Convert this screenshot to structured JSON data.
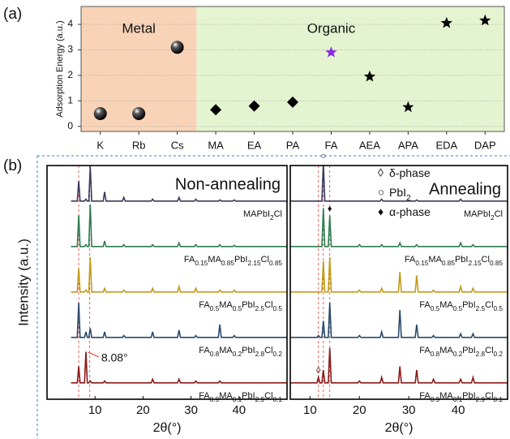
{
  "panel_labels": [
    "(a)",
    "(b)"
  ],
  "chart_data": [
    {
      "type": "scatter",
      "ylabel": "Adsorption Energy (a.u.)",
      "categories": [
        "K",
        "Rb",
        "Cs",
        "MA",
        "EA",
        "PA",
        "FA",
        "AEA",
        "APA",
        "EDA",
        "DAP"
      ],
      "values": [
        0.5,
        0.5,
        3.1,
        0.65,
        0.8,
        0.95,
        2.9,
        1.95,
        0.75,
        4.05,
        4.15
      ],
      "markers": [
        "sphere",
        "sphere",
        "sphere",
        "diamond",
        "diamond",
        "diamond",
        "star",
        "star",
        "star",
        "star",
        "star"
      ],
      "colors": [
        "#000000",
        "#000000",
        "#000000",
        "#000000",
        "#000000",
        "#000000",
        "#8a2be2",
        "#000000",
        "#000000",
        "#000000",
        "#000000"
      ],
      "ylim": [
        -0.2,
        4.7
      ],
      "yticks": [
        0,
        1,
        2,
        3,
        4
      ],
      "grid": true,
      "regions": [
        {
          "label": "Metal",
          "from": 0,
          "to": 2,
          "color": "#f9d3b7"
        },
        {
          "label": "Organic",
          "from": 3,
          "to": 10,
          "color": "#e5f4d0"
        }
      ]
    },
    {
      "type": "line",
      "title": "Non-annealing",
      "xlabel": "2θ(°)",
      "ylabel": "Intensity (a.u.)",
      "x": [
        5,
        6.3,
        6.6,
        6.9,
        7.8,
        8.1,
        8.4,
        8.7,
        9.0,
        9.3,
        11.7,
        12.0,
        12.3,
        15.7,
        16.0,
        16.3,
        21.7,
        22.0,
        22.3,
        27.2,
        27.5,
        27.8,
        30.7,
        31.0,
        31.3,
        35.7,
        36.0,
        36.3,
        38.7,
        39.0,
        39.3,
        50
      ],
      "xlim": [
        0,
        50
      ],
      "xticks": [
        10,
        20,
        30,
        40
      ],
      "ref_lines": [
        6.6,
        8.9
      ],
      "series": [
        {
          "name": "MAPbI2Cl",
          "color": "#3c3a5a",
          "values": [
            0.05,
            0.05,
            0.6,
            0.05,
            0.05,
            0.1,
            0.05,
            0.05,
            1.0,
            0.05,
            0.05,
            0.3,
            0.05,
            0.05,
            0.15,
            0.05,
            0.05,
            0.1,
            0.05,
            0.05,
            0.15,
            0.05,
            0.05,
            0.1,
            0.05,
            0.05,
            0.08,
            0.05,
            0.05,
            0.08,
            0.05,
            0.05
          ]
        },
        {
          "name": "FA0.15MA0.85PbI2.15Cl0.85",
          "color": "#2e7d4f",
          "values": [
            0.05,
            0.05,
            0.9,
            0.05,
            0.05,
            0.1,
            0.05,
            0.05,
            1.2,
            0.05,
            0.05,
            0.2,
            0.05,
            0.05,
            0.1,
            0.05,
            0.05,
            0.1,
            0.05,
            0.05,
            0.15,
            0.05,
            0.05,
            0.1,
            0.05,
            0.05,
            0.1,
            0.05,
            0.05,
            0.08,
            0.05,
            0.05
          ]
        },
        {
          "name": "FA0.5MA0.5PbI2.5Cl0.5",
          "color": "#c49a1a",
          "values": [
            0.05,
            0.05,
            0.7,
            0.05,
            0.05,
            0.1,
            0.05,
            0.05,
            1.0,
            0.05,
            0.05,
            0.15,
            0.05,
            0.05,
            0.1,
            0.05,
            0.05,
            0.15,
            0.05,
            0.05,
            0.2,
            0.05,
            0.05,
            0.15,
            0.05,
            0.05,
            0.1,
            0.05,
            0.05,
            0.1,
            0.05,
            0.05
          ]
        },
        {
          "name": "FA0.8MA0.2PbI2.8Cl0.2",
          "color": "#2a4a6b",
          "values": [
            0.05,
            0.05,
            1.0,
            0.05,
            0.05,
            0.2,
            0.05,
            0.05,
            0.3,
            0.05,
            0.05,
            0.2,
            0.05,
            0.05,
            0.1,
            0.05,
            0.05,
            0.2,
            0.05,
            0.05,
            0.25,
            0.05,
            0.05,
            0.1,
            0.05,
            0.05,
            0.4,
            0.05,
            0.05,
            0.1,
            0.05,
            0.05
          ]
        },
        {
          "name": "FA0.9MA0.1PbI2.9Cl0.1",
          "color": "#8b1a1a",
          "values": [
            0.05,
            0.05,
            0.5,
            0.05,
            0.05,
            0.9,
            0.05,
            0.05,
            0.1,
            0.05,
            0.05,
            0.1,
            0.05,
            0.05,
            0.05,
            0.05,
            0.05,
            0.15,
            0.05,
            0.05,
            0.15,
            0.05,
            0.05,
            0.1,
            0.05,
            0.05,
            0.1,
            0.05,
            0.05,
            0.05,
            0.05,
            0.05
          ]
        }
      ],
      "annotations": [
        {
          "text": "8.08°",
          "x": 8.08
        }
      ]
    },
    {
      "type": "line",
      "title": "Annealing",
      "xlabel": "2θ(°)",
      "x": [
        6,
        11.4,
        11.7,
        12.0,
        12.4,
        12.7,
        13.0,
        13.7,
        14.0,
        14.3,
        19.7,
        20.0,
        20.3,
        24.2,
        24.5,
        24.8,
        27.9,
        28.2,
        28.5,
        31.3,
        31.6,
        31.9,
        34.7,
        35.0,
        35.3,
        40.2,
        40.5,
        40.8,
        42.7,
        43.0,
        43.3,
        50
      ],
      "xlim": [
        6,
        50
      ],
      "xticks": [
        10,
        20,
        30,
        40
      ],
      "ref_lines": [
        11.7,
        12.7,
        14.0
      ],
      "legend": [
        {
          "symbol": "◊",
          "label": "δ-phase"
        },
        {
          "symbol": "○",
          "label": "PbI2"
        },
        {
          "symbol": "♦",
          "label": "α-phase"
        }
      ],
      "peak_marks": [
        {
          "symbol": "○",
          "x": 12.7,
          "series": 0
        },
        {
          "symbol": "♦",
          "x": 14.0,
          "series": 1
        },
        {
          "symbol": "◊",
          "x": 11.7,
          "series": 4
        }
      ],
      "series": [
        {
          "name": "MAPbI2Cl",
          "color": "#3c3a5a",
          "values": [
            0.05,
            0.05,
            0.05,
            0.05,
            0.05,
            1.1,
            0.05,
            0.05,
            0.05,
            0.05,
            0.05,
            0.05,
            0.05,
            0.05,
            0.1,
            0.05,
            0.05,
            0.05,
            0.05,
            0.05,
            0.08,
            0.05,
            0.05,
            0.05,
            0.05,
            0.05,
            0.1,
            0.05,
            0.05,
            0.05,
            0.05,
            0.05
          ]
        },
        {
          "name": "FA0.15MA0.85PbI2.15Cl0.85",
          "color": "#2e7d4f",
          "values": [
            0.05,
            0.05,
            0.05,
            0.05,
            0.05,
            1.1,
            0.05,
            0.05,
            0.9,
            0.05,
            0.05,
            0.1,
            0.05,
            0.05,
            0.1,
            0.05,
            0.05,
            0.15,
            0.05,
            0.05,
            0.1,
            0.05,
            0.05,
            0.05,
            0.05,
            0.05,
            0.15,
            0.05,
            0.05,
            0.1,
            0.05,
            0.05
          ]
        },
        {
          "name": "FA0.5MA0.5PbI2.5Cl0.5",
          "color": "#c49a1a",
          "values": [
            0.05,
            0.05,
            0.05,
            0.05,
            0.05,
            0.9,
            0.05,
            0.05,
            1.0,
            0.05,
            0.05,
            0.1,
            0.05,
            0.05,
            0.15,
            0.05,
            0.05,
            0.6,
            0.05,
            0.05,
            0.5,
            0.05,
            0.05,
            0.1,
            0.05,
            0.05,
            0.2,
            0.05,
            0.05,
            0.15,
            0.05,
            0.05
          ]
        },
        {
          "name": "FA0.8MA0.2PbI2.8Cl0.2",
          "color": "#2a4a6b",
          "values": [
            0.05,
            0.05,
            0.1,
            0.05,
            0.05,
            0.5,
            0.05,
            0.05,
            1.0,
            0.05,
            0.05,
            0.1,
            0.05,
            0.05,
            0.2,
            0.05,
            0.05,
            0.8,
            0.05,
            0.05,
            0.4,
            0.05,
            0.05,
            0.1,
            0.05,
            0.05,
            0.15,
            0.05,
            0.05,
            0.15,
            0.05,
            0.05
          ]
        },
        {
          "name": "FA0.9MA0.1PbI2.9Cl0.1",
          "color": "#8b1a1a",
          "values": [
            0.05,
            0.05,
            0.2,
            0.05,
            0.05,
            0.4,
            0.05,
            0.05,
            1.0,
            0.05,
            0.05,
            0.1,
            0.05,
            0.05,
            0.2,
            0.05,
            0.05,
            0.5,
            0.05,
            0.05,
            0.4,
            0.05,
            0.05,
            0.15,
            0.05,
            0.05,
            0.15,
            0.05,
            0.05,
            0.2,
            0.05,
            0.05
          ]
        }
      ]
    }
  ]
}
